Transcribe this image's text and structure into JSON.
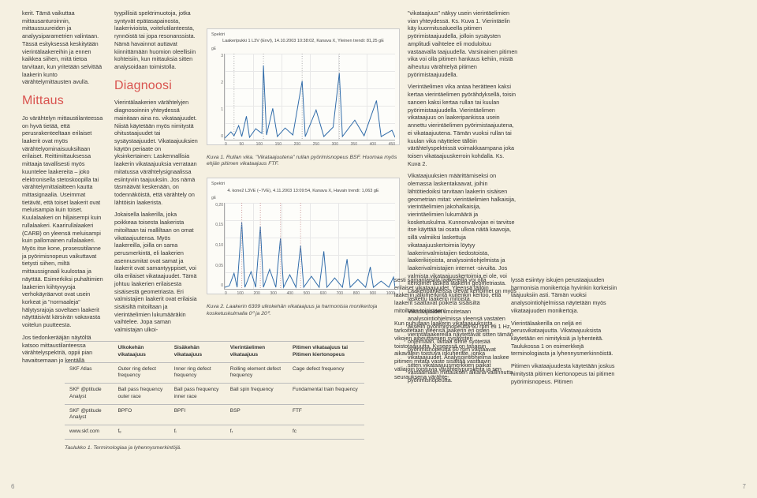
{
  "columns": {
    "c1": {
      "p1": "kerit. Tämä vaikuttaa mittausanturoinnin, mittaussuureiden ja analyysiparametrien valintaan. Tässä esityksessä keskitytään vierintälaakereihin ja ennen kaikkea siihen, mitä tietoa tarvitaan, kun yritetään selvittää laakerin kunto värähtelymittausten avulla.",
      "h1": "Mittaus",
      "p2": "Jo värähtelyn mittaustilanteessa on hyvä tietää, että perusrakenteeltaan erilaiset laakerit ovat myös värähtelyominaisuuksiltaan erilaiset. Reittimittauksessa mittaaja tavallisesti myös kuuntelee laakereita – joko elektronisella stetoskoopilla tai värähtelymittalaitteen kautta mittasignaalia. Useimmat tietävät, että toiset laakerit ovat meluisampia kuin toiset. Kuulalaakeri on hiljaisempi kuin rullalaakeri. Kaarirullalaakeri (CARB) on yleensä meluisampi kuin pallomainen rullalaakeri. Myös itse kone, prosessitilanne ja pyörimisnopeus vaikuttavat tietysti siihen, miltä mittaussignaali kuulostaa ja näyttää. Esimerkiksi puhaltimien laakerien kiihtyvyysja verhokäyräarvot ovat usein korkeat ja \"normaaleja\" hälytysrajoja soveltaen laakerit näyttäisivät kärsivän vakavasta voitelun puutteesta.",
      "p3": "Jos tiedonkerääjän näytöltä katsoo mittaustilanteessa värähtelyspektriä, oppii pian havaitsemaan jo kentällä"
    },
    "c2": {
      "p1": "tyypillisiä spektrimuotoja, jotka syntyvät epätasapainosta, laakerivioista, voitelutilanteesta, rynnöistä tai jopa resonanssista. Nämä havainnot auttavat kiinnittämään huomion oleellisiin kohteisiin, kun mittauksia sitten analysoidaan toimistolla.",
      "h1": "Diagnoosi",
      "p2": "Vierintälaakerien värähtelyjen diagnosoinnin yhteydessä mainitaan aina ns. vikataajuudet. Niistä käytetään myös nimitystä ohitustaajuudet tai sysäystaajuudet. Vikataajuuksien käytön periaate on yksinkertainen: Laskennallisia laakerin vikataajuuksia verrataan mitatussa värähtelysignaalissa esiintyviin taajuuksiin. Jos nämä täsmäävät keskenään, on todennäköistä, että värähtely on lähtöisin laakerista.",
      "p3": "Jokaisella laakerilla, joka poikkeaa toisesta laakerista mitoiltaan tai malliltaan on omat vikataajuutensa. Myös laakereilla, joilla on sama perusmerkintä, eli laakerien asennusmitat ovat samat ja laakerit ovat samantyyppiset, voi olla erilaiset vikataajuudet. Tämä johtuu laakerien erilaisesta sisäisestä geometriasta. Eri valmistajien laakerit ovat erilaisia sisäisiltä mitoiltaan ja vierintäelimien lukumääräkin vaihtelee. Jopa saman valmistajan ulkoi-"
    },
    "c5": {
      "p1": "\"vikataajuus\" näkyy usein vierintäelimien vian yhteydessä. Ks. Kuva 1. Vierintäelin käy kuormitusalueella pitimen pyörimistaajuudella, jolloin sysäysten amplitudi vaihtelee eli moduloituu vastaavalla taajuudella. Varsinainen pitimen vika voi olla pitimen hankaus kehiin, mistä aiheutuu värähtelyä pitimen pyörimistaajuudella.",
      "p2": "Vierintäelimen vika antaa herätteen kaksi kertaa vierintäelimen pyörähdyksellä, toisin sanoen kaksi kertaa rullan tai kuulan pyörimistaajuudella. Vierintäelimen vikataajuus on laakeripankissa usein annettu vierintäelimen pyörimistaajuutena, ei vikataajuutena. Tämän vuoksi rullan tai kuulan vika näyttelee tällöin värähtelyspektrissä voimakkaampana joka toisen vikataajuuskerroin kohdalla. Ks. Kuva 2.",
      "p3": "Vikataajuuksien määrittämiseksi on olemassa laskentakaavat, joihin lähtötiedoiksi tarvitaan laakerin sisäisen geometrian mitat: vierintäelimien halkaisija, vierintäelimien jakohalkaisija, vierintäelimien lukumäärä ja kosketuskulma. Kunnonvalvojan ei tarvitse itse käyttää tai osata ulkoa näitä kaavoja, sillä valmiiksi laskettuja vikataajuuskertoimia löytyy laakerinvalmistajien tiedostoista, laakerikirjoista, analysointiohjelmista ja laakerivalmistajien internet -sivuilta. Jos valmista vikataajuuskertoimia ei ole, voi kertoimet laskea laakerin geometriasta. Laakeripankeissa olevat kertoimet on myös laskettu laakerin mitoista.",
      "p4": "Vikataajuudet ilmoitetaan analysointiohjelmissa yleensä vastaten akselin pyörimisnopeutta 60 rpm eli 1 Hz, vierintälaakereilla näytettävät sitten tämän ohjelmaan, laittaa sinne syötetää pyörimisnopeutta 60 rpm vastaavat vikataajuudet. Analysointiohjelma laskee sitten vikataajuusmerkkien paikat vastaamaan mittauksen aikana vallinnutta pyörimisnopeutta."
    }
  },
  "bottom": {
    "b1": {
      "p1": "sesti samanlaisilla laakereilla voi olla erilaiset vikataajuudet. Yleensä tällöin laakerin jälkimerkintä kuitenkin kertoo, että laakerit saattavat poiketa sisäisiltä mitoiltaan toisistaan.",
      "p2": "Kun puhutaan laakerin vikataajuuksista, tarkoitetaan yleensä laakerin eri osien vikojen aiheuttamien sysäysten toistotaajuutta. Kyseessä on tasaisin aikavälein toistuva iskuheräte, jonka pitimen mitata vaste sisältää vastaavin väliajoin toistuvia värähtelypurskeita ja sen seurauksena värähte-"
    },
    "b2": {
      "p1": "lyssä esiintyy iskujen perustaajuuden harmonisia monikertoja hyvinkin korkeisiin taajuuksiin asti. Tämän vuoksi analysointiohjelmissa näytetään myös vikataajuuden monikertoja.",
      "p2": "Vierintälaakerilla on neljä eri perusvikataajuutta. Vikataajuuksista käytetään eri nimityksiä ja lyhenteitä. Taulukossa 1 on esimerkkejä terminologiasta ja lyhennysmerkinnöistä.",
      "p3": "Pitimen vikataajuudesta käytetään joskus nimitystä pitimen kiertonopeus tai pitimen pyörimisnopeus. Pitimen"
    }
  },
  "chart1": {
    "header_left": "Spektri",
    "title": "Laakeripukki 1 L3V (Envl), 14.10.2003 10:38:02, Kanava X, Yleinen trendi: 81,25 gE",
    "ylabel": "gE",
    "ytick": [
      "3",
      "2",
      "1",
      "0"
    ],
    "xtick": [
      "0",
      "50",
      "100",
      "150",
      "200",
      "250",
      "300",
      "350",
      "400",
      "450"
    ],
    "caption": "Kuva 1. Rullan vika. \"Vikataajuutena\" rullan pyörimisnopeus BSF. Huomaa myös ehjän pitimen vikataajuus FTF.",
    "line_color": "#2e6aa8"
  },
  "chart2": {
    "header_left": "Spektri",
    "title": "4. kone2 L3VE (–7VE), 4.11.2003 13:09:54, Kanava X, Havain trendi: 1,063 gE",
    "ylabel": "gE",
    "ytick": [
      "0,20",
      "0,15",
      "0,10",
      "0,05",
      "0"
    ],
    "xtick": [
      "0",
      "100",
      "200",
      "300",
      "400",
      "500",
      "600",
      "700",
      "800",
      "900",
      "1000"
    ],
    "caption": "Kuva 2. Laakerin 6309 ulkokehän vikataajuus ja harmonisia monikertoja kosketuskulmalla 0⁰ ja 20⁰.",
    "line_color": "#2e6aa8"
  },
  "table": {
    "headers": [
      "",
      "Ulkokehän vikataajuus",
      "Sisäkehän vikataajuus",
      "Vierintäelimen vikataajuus",
      "Pitimen vikataajuus tai Pitimen kiertonopeus"
    ],
    "rows": [
      [
        "SKF Atlas",
        "Outer ring defect frequency",
        "Inner ring defect frequency",
        "Rolling element defect frequency",
        "Cage defect frequency"
      ],
      [
        "SKF @ptitude Analyst",
        "Ball pass frequency outer race",
        "Ball pass frequency inner race",
        "Ball spin frequency",
        "Fundamental train frequency"
      ],
      [
        "SKF @ptitude Analyst",
        "BPFO",
        "BPFI",
        "BSP",
        "FTF"
      ],
      [
        "www.skf.com",
        "fₑ",
        "fᵢ",
        "fᵣ",
        "fc"
      ]
    ],
    "caption": "Taulukko 1. Terminologiaa ja lyhennysmerkintöjä."
  },
  "page_left": "6",
  "page_right": "7"
}
